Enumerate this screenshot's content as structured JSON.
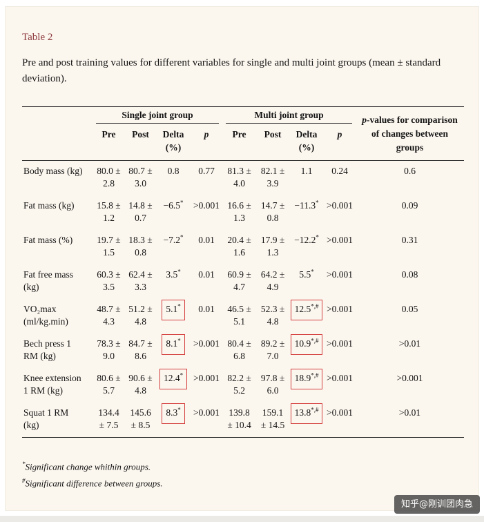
{
  "page": {
    "table_label": "Table 2",
    "caption": "Pre and post training values for different variables for single and multi joint groups (mean ± standard deviation).",
    "watermark": "知乎@刚训团肉急"
  },
  "colors": {
    "card_background": "#fbf6ee",
    "table_label": "#8e3b3e",
    "highlight_box": "#d43d3d",
    "rule": "#2a2a2a"
  },
  "table": {
    "groups": [
      {
        "label": "Single joint group"
      },
      {
        "label": "Multi joint group"
      }
    ],
    "columns": [
      {
        "text": "Pre"
      },
      {
        "text": "Post"
      },
      {
        "text": "Delta",
        "line2": "(%)"
      },
      {
        "text": "p",
        "italic": true
      },
      {
        "text": "Pre"
      },
      {
        "text": "Post"
      },
      {
        "text": "Delta",
        "line2": "(%)"
      },
      {
        "text": "p",
        "italic": true
      }
    ],
    "comparison_header": {
      "italic": "p",
      "rest": "-values for comparison of changes between groups"
    },
    "rows": [
      {
        "label": [
          "Body mass (kg)"
        ],
        "single": {
          "pre": [
            "80.0 ±",
            "2.8"
          ],
          "post": [
            "80.7 ±",
            "3.0"
          ],
          "delta": {
            "value": "0.8",
            "sup": "",
            "boxed": false
          },
          "p": "0.77"
        },
        "multi": {
          "pre": [
            "81.3 ±",
            "4.0"
          ],
          "post": [
            "82.1 ±",
            "3.9"
          ],
          "delta": {
            "value": "1.1",
            "sup": "",
            "boxed": false
          },
          "p": "0.24"
        },
        "comparison": "0.6"
      },
      {
        "label": [
          "Fat mass (kg)"
        ],
        "single": {
          "pre": [
            "15.8 ±",
            "1.2"
          ],
          "post": [
            "14.8 ±",
            "0.7"
          ],
          "delta": {
            "value": "−6.5",
            "sup": "*",
            "boxed": false
          },
          "p": ">0.001"
        },
        "multi": {
          "pre": [
            "16.6 ±",
            "1.3"
          ],
          "post": [
            "14.7 ±",
            "0.8"
          ],
          "delta": {
            "value": "−11.3",
            "sup": "*",
            "boxed": false
          },
          "p": ">0.001"
        },
        "comparison": "0.09"
      },
      {
        "label": [
          "Fat mass (%)"
        ],
        "single": {
          "pre": [
            "19.7 ±",
            "1.5"
          ],
          "post": [
            "18.3 ±",
            "0.8"
          ],
          "delta": {
            "value": "−7.2",
            "sup": "*",
            "boxed": false
          },
          "p": "0.01"
        },
        "multi": {
          "pre": [
            "20.4 ±",
            "1.6"
          ],
          "post": [
            "17.9 ±",
            "1.3"
          ],
          "delta": {
            "value": "−12.2",
            "sup": "*",
            "boxed": false
          },
          "p": ">0.001"
        },
        "comparison": "0.31"
      },
      {
        "label": [
          "Fat free mass",
          "(kg)"
        ],
        "single": {
          "pre": [
            "60.3 ±",
            "3.5"
          ],
          "post": [
            "62.4 ±",
            "3.3"
          ],
          "delta": {
            "value": "3.5",
            "sup": "*",
            "boxed": false
          },
          "p": "0.01"
        },
        "multi": {
          "pre": [
            "60.9 ±",
            "4.7"
          ],
          "post": [
            "64.2 ±",
            "4.9"
          ],
          "delta": {
            "value": "5.5",
            "sup": "*",
            "boxed": false
          },
          "p": ">0.001"
        },
        "comparison": "0.08"
      },
      {
        "label": [
          "VO₂max",
          "(ml/kg.min)"
        ],
        "single": {
          "pre": [
            "48.7 ±",
            "4.3"
          ],
          "post": [
            "51.2 ±",
            "4.8"
          ],
          "delta": {
            "value": "5.1",
            "sup": "*",
            "boxed": true
          },
          "p": "0.01"
        },
        "multi": {
          "pre": [
            "46.5 ±",
            "5.1"
          ],
          "post": [
            "52.3 ±",
            "4.8"
          ],
          "delta": {
            "value": "12.5",
            "sup": "*,#",
            "boxed": true
          },
          "p": ">0.001"
        },
        "comparison": "0.05"
      },
      {
        "label": [
          "Bech press 1",
          "RM (kg)"
        ],
        "single": {
          "pre": [
            "78.3 ±",
            "9.0"
          ],
          "post": [
            "84.7 ±",
            "8.6"
          ],
          "delta": {
            "value": "8.1",
            "sup": "*",
            "boxed": true
          },
          "p": ">0.001"
        },
        "multi": {
          "pre": [
            "80.4 ±",
            "6.8"
          ],
          "post": [
            "89.2 ±",
            "7.0"
          ],
          "delta": {
            "value": "10.9",
            "sup": "*,#",
            "boxed": true
          },
          "p": ">0.001"
        },
        "comparison": ">0.01"
      },
      {
        "label": [
          "Knee extension",
          "1 RM (kg)"
        ],
        "single": {
          "pre": [
            "80.6 ±",
            "5.7"
          ],
          "post": [
            "90.6 ±",
            "4.8"
          ],
          "delta": {
            "value": "12.4",
            "sup": "*",
            "boxed": true
          },
          "p": ">0.001"
        },
        "multi": {
          "pre": [
            "82.2 ±",
            "5.2"
          ],
          "post": [
            "97.8 ±",
            "6.0"
          ],
          "delta": {
            "value": "18.9",
            "sup": "*,#",
            "boxed": true
          },
          "p": ">0.001"
        },
        "comparison": ">0.001"
      },
      {
        "label": [
          "Squat 1 RM",
          "(kg)"
        ],
        "single": {
          "pre": [
            "134.4",
            "± 7.5"
          ],
          "post": [
            "145.6",
            "± 8.5"
          ],
          "delta": {
            "value": "8.3",
            "sup": "*",
            "boxed": true
          },
          "p": ">0.001"
        },
        "multi": {
          "pre": [
            "139.8",
            "± 10.4"
          ],
          "post": [
            "159.1",
            "± 14.5"
          ],
          "delta": {
            "value": "13.8",
            "sup": "*,#",
            "boxed": true
          },
          "p": ">0.001"
        },
        "comparison": ">0.01"
      }
    ]
  },
  "footnotes": [
    {
      "marker": "*",
      "text": "Significant change whithin groups."
    },
    {
      "marker": "#",
      "text": "Significant difference between groups."
    }
  ]
}
